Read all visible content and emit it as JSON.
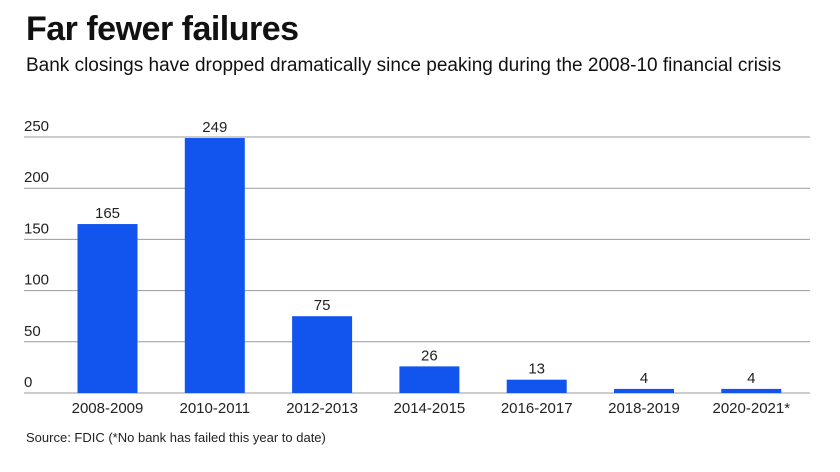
{
  "title": "Far fewer failures",
  "subtitle": "Bank closings have dropped dramatically since peaking during the 2008-10 financial crisis",
  "source": "Source: FDIC (*No bank has failed this year to date)",
  "colors": {
    "bar": "#1155EE",
    "grid": "#9a9a9a"
  },
  "chart_data": {
    "type": "bar",
    "title": "Far fewer failures",
    "subtitle": "Bank closings have dropped dramatically since peaking during the 2008-10 financial crisis",
    "categories": [
      "2008-2009",
      "2010-2011",
      "2012-2013",
      "2014-2015",
      "2016-2017",
      "2018-2019",
      "2020-2021*"
    ],
    "values": [
      165,
      249,
      75,
      26,
      13,
      4,
      4
    ],
    "data_labels": [
      "165",
      "249",
      "75",
      "26",
      "13",
      "4",
      "4"
    ],
    "ylim": [
      0,
      250
    ],
    "yticks": [
      0,
      50,
      100,
      150,
      200,
      250
    ],
    "xlabel": "",
    "ylabel": "",
    "grid": true,
    "legend": "none"
  }
}
